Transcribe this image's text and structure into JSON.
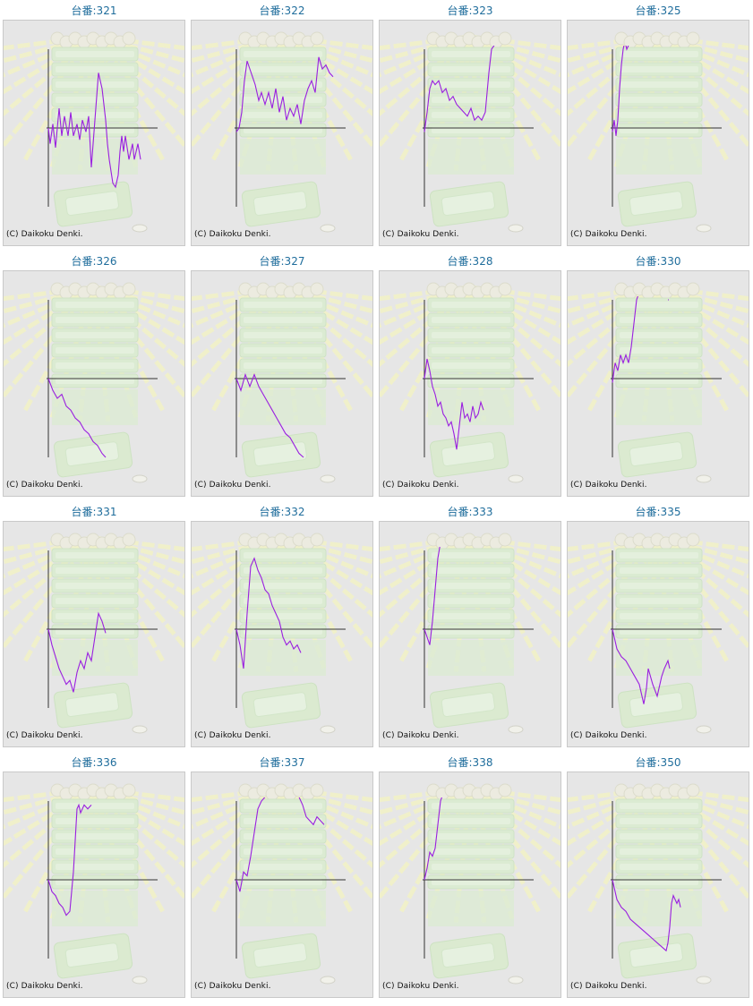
{
  "copyright": "(C) Daikoku Denki.",
  "series_color": "#9a1fe0",
  "axis_color": "#333333",
  "chart_data": [
    {
      "type": "line",
      "title": "台番:321",
      "x": [
        0,
        2,
        5,
        8,
        12,
        15,
        18,
        22,
        25,
        28,
        32,
        35,
        38,
        42,
        45,
        48,
        52,
        56,
        58,
        60,
        62,
        64,
        66,
        68,
        72,
        75,
        78,
        80,
        82,
        84,
        86,
        90,
        94,
        96,
        100,
        103
      ],
      "y": [
        0,
        -0.2,
        0.05,
        -0.25,
        0.25,
        -0.1,
        0.15,
        -0.1,
        0.2,
        -0.1,
        0.05,
        -0.15,
        0.1,
        -0.05,
        0.15,
        -0.5,
        0.1,
        0.7,
        0.6,
        0.5,
        0.3,
        0.1,
        -0.2,
        -0.4,
        -0.7,
        -0.75,
        -0.6,
        -0.3,
        -0.1,
        -0.3,
        -0.1,
        -0.4,
        -0.2,
        -0.4,
        -0.2,
        -0.4
      ]
    },
    {
      "type": "line",
      "title": "台番:322",
      "x": [
        0,
        3,
        6,
        9,
        12,
        15,
        18,
        21,
        25,
        28,
        32,
        36,
        40,
        44,
        48,
        52,
        56,
        60,
        64,
        68,
        72,
        76,
        80,
        84,
        88,
        92,
        96,
        100,
        104,
        108
      ],
      "y": [
        -0.05,
        0,
        0.2,
        0.6,
        0.85,
        0.75,
        0.65,
        0.55,
        0.35,
        0.45,
        0.3,
        0.45,
        0.25,
        0.5,
        0.2,
        0.4,
        0.1,
        0.25,
        0.15,
        0.3,
        0.05,
        0.35,
        0.5,
        0.6,
        0.45,
        0.9,
        0.75,
        0.8,
        0.7,
        0.65
      ]
    },
    {
      "type": "line",
      "title": "台番:323",
      "x": [
        0,
        3,
        6,
        9,
        12,
        16,
        20,
        24,
        28,
        32,
        36,
        40,
        44,
        48,
        52,
        56,
        60,
        64,
        68,
        72,
        75,
        78
      ],
      "y": [
        -0.05,
        0.2,
        0.5,
        0.6,
        0.55,
        0.6,
        0.45,
        0.5,
        0.35,
        0.4,
        0.3,
        0.25,
        0.2,
        0.15,
        0.25,
        0.1,
        0.15,
        0.1,
        0.2,
        0.7,
        1.0,
        1.05
      ]
    },
    {
      "type": "line",
      "title": "台番:325",
      "x": [
        0,
        2,
        4,
        6,
        8,
        10,
        12,
        14,
        16,
        18,
        20
      ],
      "y": [
        -0.05,
        0.1,
        -0.1,
        0.1,
        0.5,
        0.8,
        1.0,
        1.1,
        1.0,
        1.05,
        1.1
      ]
    },
    {
      "type": "line",
      "title": "台番:326",
      "x": [
        0,
        5,
        10,
        15,
        20,
        25,
        30,
        35,
        40,
        45,
        50,
        55,
        60,
        64
      ],
      "y": [
        0,
        -0.15,
        -0.25,
        -0.2,
        -0.35,
        -0.4,
        -0.5,
        -0.55,
        -0.65,
        -0.7,
        -0.8,
        -0.85,
        -0.95,
        -1.0
      ]
    },
    {
      "type": "line",
      "title": "台番:327",
      "x": [
        0,
        5,
        10,
        15,
        20,
        25,
        30,
        35,
        40,
        45,
        50,
        55,
        60,
        65,
        70,
        75
      ],
      "y": [
        0,
        -0.15,
        0.05,
        -0.1,
        0.05,
        -0.1,
        -0.2,
        -0.3,
        -0.4,
        -0.5,
        -0.6,
        -0.7,
        -0.75,
        -0.85,
        -0.95,
        -1.0
      ]
    },
    {
      "type": "line",
      "title": "台番:328",
      "x": [
        0,
        3,
        6,
        9,
        12,
        15,
        18,
        21,
        24,
        27,
        30,
        33,
        36,
        39,
        42,
        45,
        48,
        51,
        54,
        57,
        60,
        63,
        66
      ],
      "y": [
        0,
        0.25,
        0.1,
        -0.1,
        -0.2,
        -0.35,
        -0.3,
        -0.45,
        -0.5,
        -0.6,
        -0.55,
        -0.7,
        -0.9,
        -0.6,
        -0.3,
        -0.5,
        -0.45,
        -0.55,
        -0.35,
        -0.5,
        -0.45,
        -0.3,
        -0.4
      ]
    },
    {
      "type": "line",
      "title": "台番:330",
      "x": [
        0,
        3,
        6,
        9,
        12,
        15,
        18,
        21,
        24,
        27,
        30,
        62
      ],
      "y": [
        -0.05,
        0.2,
        0.1,
        0.3,
        0.2,
        0.3,
        0.2,
        0.4,
        0.7,
        1.0,
        1.1,
        1.0
      ]
    },
    {
      "type": "line",
      "title": "台番:331",
      "x": [
        0,
        4,
        8,
        12,
        16,
        20,
        24,
        28,
        32,
        36,
        40,
        44,
        48,
        52,
        56,
        60,
        64
      ],
      "y": [
        0,
        -0.2,
        -0.35,
        -0.5,
        -0.6,
        -0.7,
        -0.65,
        -0.8,
        -0.55,
        -0.4,
        -0.5,
        -0.3,
        -0.4,
        -0.1,
        0.2,
        0.1,
        -0.05
      ]
    },
    {
      "type": "line",
      "title": "台番:332",
      "x": [
        0,
        4,
        8,
        12,
        16,
        20,
        24,
        28,
        32,
        36,
        40,
        44,
        48,
        52,
        56,
        60,
        64,
        68,
        72
      ],
      "y": [
        0,
        -0.2,
        -0.5,
        0.2,
        0.8,
        0.9,
        0.75,
        0.65,
        0.5,
        0.45,
        0.3,
        0.2,
        0.1,
        -0.1,
        -0.2,
        -0.15,
        -0.25,
        -0.2,
        -0.3
      ]
    },
    {
      "type": "line",
      "title": "台番:333",
      "x": [
        0,
        3,
        6,
        9,
        12,
        15,
        18
      ],
      "y": [
        0,
        -0.1,
        -0.2,
        0.1,
        0.5,
        0.9,
        1.1
      ]
    },
    {
      "type": "line",
      "title": "台番:335",
      "x": [
        0,
        5,
        10,
        15,
        20,
        25,
        30,
        35,
        38,
        40,
        45,
        50,
        55,
        58,
        60,
        62,
        64
      ],
      "y": [
        0,
        -0.25,
        -0.35,
        -0.4,
        -0.5,
        -0.6,
        -0.7,
        -0.95,
        -0.75,
        -0.5,
        -0.7,
        -0.85,
        -0.6,
        -0.5,
        -0.45,
        -0.4,
        -0.5
      ]
    },
    {
      "type": "line",
      "title": "台番:336",
      "x": [
        0,
        4,
        8,
        12,
        16,
        20,
        24,
        28,
        30,
        32,
        34,
        36,
        40,
        44,
        48
      ],
      "y": [
        0,
        -0.15,
        -0.2,
        -0.3,
        -0.35,
        -0.45,
        -0.4,
        0.1,
        0.5,
        0.9,
        0.95,
        0.85,
        0.95,
        0.9,
        0.95
      ]
    },
    {
      "type": "line",
      "title": "台番:337",
      "x": [
        0,
        4,
        8,
        12,
        16,
        20,
        24,
        28,
        32,
        70,
        74,
        78,
        82,
        86,
        90,
        94,
        98
      ],
      "y": [
        0,
        -0.15,
        0.1,
        0.05,
        0.3,
        0.6,
        0.9,
        1.0,
        1.05,
        1.05,
        0.95,
        0.8,
        0.75,
        0.7,
        0.8,
        0.75,
        0.7
      ]
    },
    {
      "type": "line",
      "title": "台番:338",
      "x": [
        0,
        3,
        6,
        9,
        12,
        15,
        18,
        21
      ],
      "y": [
        0,
        0.15,
        0.35,
        0.3,
        0.4,
        0.7,
        1.0,
        1.1
      ]
    },
    {
      "type": "line",
      "title": "台番:350",
      "x": [
        0,
        5,
        10,
        15,
        20,
        25,
        30,
        35,
        40,
        45,
        50,
        55,
        60,
        62,
        64,
        66,
        68,
        70,
        72,
        74,
        76
      ],
      "y": [
        0,
        -0.25,
        -0.35,
        -0.4,
        -0.5,
        -0.55,
        -0.6,
        -0.65,
        -0.7,
        -0.75,
        -0.8,
        -0.85,
        -0.9,
        -0.8,
        -0.6,
        -0.3,
        -0.2,
        -0.25,
        -0.3,
        -0.25,
        -0.35
      ]
    }
  ]
}
